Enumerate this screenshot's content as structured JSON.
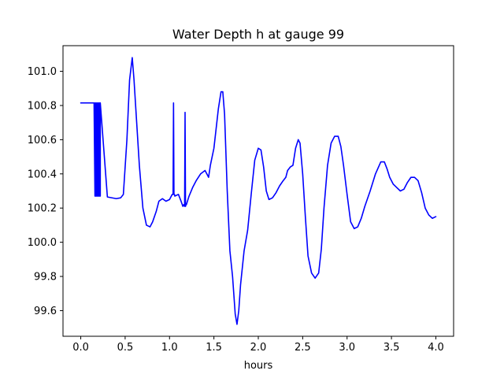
{
  "chart_data": {
    "type": "line",
    "title": "Water Depth h at gauge 99",
    "xlabel": "hours",
    "ylabel": "",
    "xlim": [
      -0.2,
      4.2
    ],
    "ylim": [
      99.45,
      101.15
    ],
    "xticks": [
      0.0,
      0.5,
      1.0,
      1.5,
      2.0,
      2.5,
      3.0,
      3.5,
      4.0
    ],
    "xtick_labels": [
      "0.0",
      "0.5",
      "1.0",
      "1.5",
      "2.0",
      "2.5",
      "3.0",
      "3.5",
      "4.0"
    ],
    "yticks": [
      99.6,
      99.8,
      100.0,
      100.2,
      100.4,
      100.6,
      100.8,
      101.0
    ],
    "ytick_labels": [
      "99.6",
      "99.8",
      "100.0",
      "100.2",
      "100.4",
      "100.6",
      "100.8",
      "101.0"
    ],
    "grid": false,
    "series": [
      {
        "color": "#0000ff",
        "x": [
          0.0,
          0.15,
          0.16,
          0.16,
          0.17,
          0.17,
          0.18,
          0.18,
          0.19,
          0.19,
          0.2,
          0.2,
          0.21,
          0.21,
          0.22,
          0.22,
          0.3,
          0.4,
          0.45,
          0.48,
          0.52,
          0.55,
          0.58,
          0.6,
          0.63,
          0.66,
          0.7,
          0.74,
          0.78,
          0.81,
          0.85,
          0.88,
          0.92,
          0.96,
          1.0,
          1.03,
          1.04,
          1.045,
          1.05,
          1.055,
          1.06,
          1.1,
          1.13,
          1.15,
          1.16,
          1.17,
          1.175,
          1.18,
          1.185,
          1.19,
          1.22,
          1.26,
          1.3,
          1.35,
          1.4,
          1.42,
          1.44,
          1.46,
          1.5,
          1.55,
          1.58,
          1.6,
          1.62,
          1.65,
          1.68,
          1.71,
          1.74,
          1.76,
          1.78,
          1.8,
          1.84,
          1.88,
          1.92,
          1.96,
          2.0,
          2.03,
          2.06,
          2.09,
          2.12,
          2.16,
          2.2,
          2.24,
          2.28,
          2.31,
          2.33,
          2.36,
          2.39,
          2.42,
          2.45,
          2.47,
          2.5,
          2.53,
          2.56,
          2.6,
          2.64,
          2.68,
          2.71,
          2.74,
          2.78,
          2.82,
          2.86,
          2.9,
          2.93,
          2.96,
          3.0,
          3.04,
          3.08,
          3.12,
          3.16,
          3.2,
          3.26,
          3.32,
          3.38,
          3.42,
          3.45,
          3.48,
          3.52,
          3.56,
          3.6,
          3.64,
          3.68,
          3.72,
          3.76,
          3.8,
          3.84,
          3.88,
          3.92,
          3.96,
          4.0
        ],
        "y": [
          100.815,
          100.815,
          100.27,
          100.815,
          100.27,
          100.815,
          100.27,
          100.815,
          100.27,
          100.815,
          100.27,
          100.815,
          100.27,
          100.815,
          100.27,
          100.815,
          100.265,
          100.255,
          100.26,
          100.28,
          100.6,
          100.95,
          101.08,
          100.95,
          100.7,
          100.45,
          100.2,
          100.1,
          100.09,
          100.12,
          100.18,
          100.24,
          100.255,
          100.24,
          100.25,
          100.28,
          100.28,
          100.815,
          100.28,
          100.28,
          100.27,
          100.28,
          100.24,
          100.21,
          100.22,
          100.21,
          100.76,
          100.21,
          100.22,
          100.22,
          100.27,
          100.32,
          100.36,
          100.4,
          100.42,
          100.4,
          100.38,
          100.45,
          100.55,
          100.78,
          100.88,
          100.88,
          100.75,
          100.3,
          99.95,
          99.8,
          99.58,
          99.52,
          99.6,
          99.75,
          99.95,
          100.07,
          100.28,
          100.48,
          100.55,
          100.54,
          100.44,
          100.3,
          100.25,
          100.26,
          100.29,
          100.33,
          100.36,
          100.38,
          100.42,
          100.44,
          100.45,
          100.55,
          100.6,
          100.58,
          100.4,
          100.15,
          99.92,
          99.82,
          99.79,
          99.82,
          99.96,
          100.2,
          100.45,
          100.58,
          100.62,
          100.62,
          100.56,
          100.45,
          100.28,
          100.12,
          100.08,
          100.09,
          100.14,
          100.21,
          100.3,
          100.4,
          100.47,
          100.47,
          100.43,
          100.38,
          100.34,
          100.32,
          100.3,
          100.31,
          100.35,
          100.38,
          100.38,
          100.36,
          100.29,
          100.2,
          100.16,
          100.14,
          100.15
        ]
      }
    ]
  }
}
